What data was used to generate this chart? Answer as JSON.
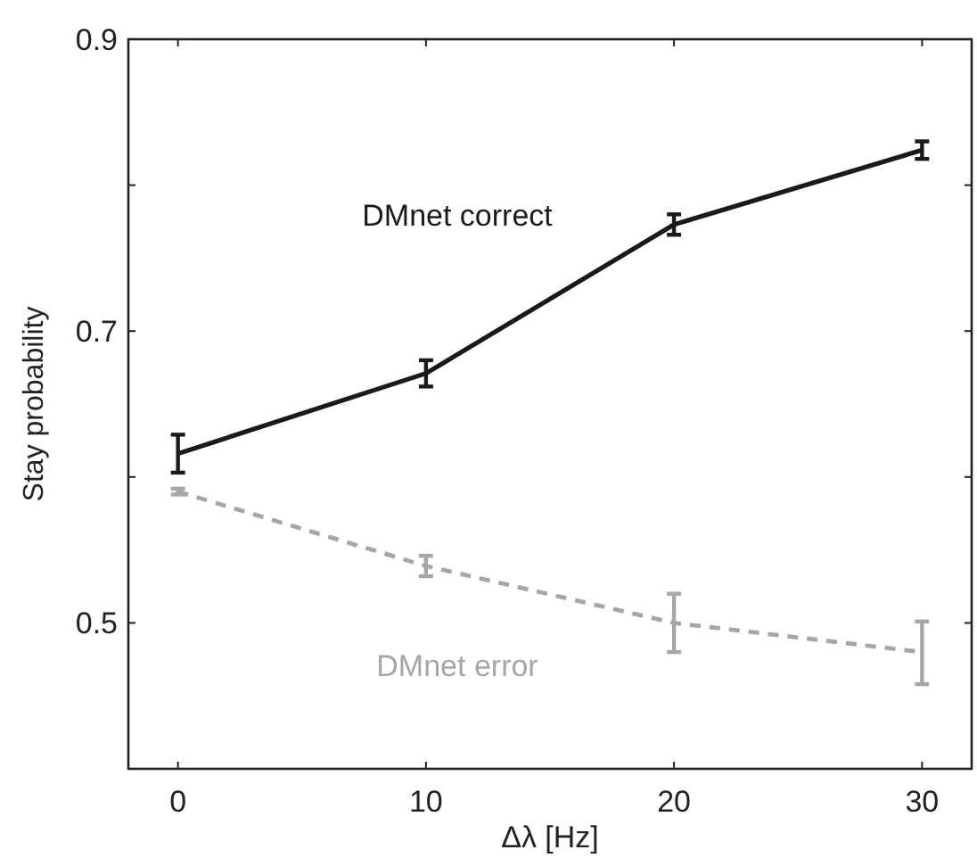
{
  "chart_data": {
    "type": "line",
    "xlabel": "Δλ [Hz]",
    "ylabel": "Stay probability",
    "x": [
      0,
      10,
      20,
      30
    ],
    "xlim": [
      -2,
      32
    ],
    "ylim": [
      0.4,
      0.9
    ],
    "xticks": [
      0,
      10,
      20,
      30
    ],
    "yticks": [
      {
        "value": 0.5,
        "label": "0.5"
      },
      {
        "value": 0.6,
        "label": null
      },
      {
        "value": 0.7,
        "label": "0.7"
      },
      {
        "value": 0.8,
        "label": null
      },
      {
        "value": 0.9,
        "label": "0.9"
      }
    ],
    "marker": "none",
    "grid": false,
    "series": [
      {
        "name": "DMnet correct",
        "color": "#1a1a1a",
        "line_style": "solid",
        "values": [
          0.616,
          0.671,
          0.773,
          0.824
        ],
        "errors": [
          0.013,
          0.009,
          0.007,
          0.006
        ]
      },
      {
        "name": "DMnet error",
        "color": "#a6a6a6",
        "line_style": "dashed",
        "values": [
          0.59,
          0.539,
          0.5,
          0.48
        ],
        "errors": [
          0.002,
          0.007,
          0.02,
          [
            0.458,
            0.501
          ]
        ]
      }
    ]
  }
}
